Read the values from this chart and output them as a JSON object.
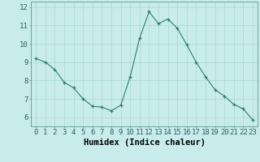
{
  "x": [
    0,
    1,
    2,
    3,
    4,
    5,
    6,
    7,
    8,
    9,
    10,
    11,
    12,
    13,
    14,
    15,
    16,
    17,
    18,
    19,
    20,
    21,
    22,
    23
  ],
  "y": [
    9.2,
    9.0,
    8.6,
    7.9,
    7.6,
    7.0,
    6.6,
    6.55,
    6.35,
    6.65,
    8.2,
    10.3,
    11.75,
    11.1,
    11.35,
    10.85,
    9.95,
    9.0,
    8.2,
    7.5,
    7.15,
    6.7,
    6.45,
    5.85
  ],
  "xlabel": "Humidex (Indice chaleur)",
  "ylim": [
    5.5,
    12.3
  ],
  "xlim": [
    -0.5,
    23.5
  ],
  "yticks": [
    6,
    7,
    8,
    9,
    10,
    11,
    12
  ],
  "xticks": [
    0,
    1,
    2,
    3,
    4,
    5,
    6,
    7,
    8,
    9,
    10,
    11,
    12,
    13,
    14,
    15,
    16,
    17,
    18,
    19,
    20,
    21,
    22,
    23
  ],
  "line_color": "#2e7d6e",
  "marker_color": "#2e7d6e",
  "bg_color": "#c8ecec",
  "grid_color": "#a8d8d0",
  "xlabel_fontsize": 7.5,
  "tick_fontsize": 6.5,
  "fig_width": 3.2,
  "fig_height": 2.0,
  "dpi": 100
}
